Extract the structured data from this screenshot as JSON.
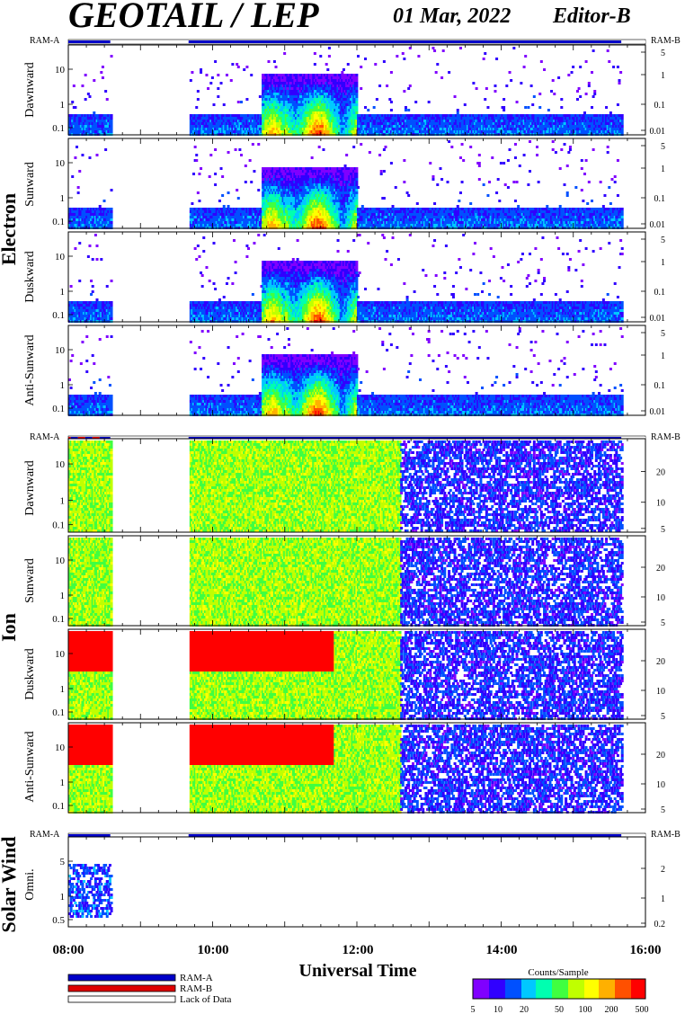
{
  "header": {
    "title": "GEOTAIL / LEP",
    "date": "01 Mar, 2022",
    "editor": "Editor-B"
  },
  "labels": {
    "ram_a": "RAM-A",
    "ram_b": "RAM-B",
    "x_axis_title": "Universal Time",
    "colorbar_title": "Counts/Sample"
  },
  "legend": [
    {
      "label": "RAM-A",
      "color": "#0000c8"
    },
    {
      "label": "RAM-B",
      "color": "#e00000"
    },
    {
      "label": "Lack of Data",
      "color": "#ffffff"
    }
  ],
  "colors": {
    "ram_a": "#0000c8",
    "ram_b": "#e00000",
    "lack": "#ffffff"
  },
  "colorbar": {
    "ticks": [
      "5",
      "10",
      "20",
      "50",
      "100",
      "200",
      "500"
    ],
    "tick_values": [
      5,
      10,
      20,
      50,
      100,
      200,
      500
    ],
    "range": [
      5,
      500
    ],
    "colors": [
      "#8000ff",
      "#3000ff",
      "#0050ff",
      "#00c8ff",
      "#00ffb0",
      "#40ff40",
      "#c0ff00",
      "#ffff00",
      "#ffb000",
      "#ff5000",
      "#ff0000"
    ]
  },
  "chart_data": [
    {
      "type": "heatmap",
      "group": "Electron",
      "time_range": [
        "08:00",
        "16:00"
      ],
      "x_ticks": [
        "08:00",
        "10:00",
        "12:00",
        "14:00",
        "16:00"
      ],
      "data_gaps": [
        [
          "08:35",
          "09:40"
        ],
        [
          "15:40",
          "16:00"
        ]
      ],
      "ram_bar": [
        {
          "from": "08:00",
          "to": "08:35",
          "state": "RAM-A"
        },
        {
          "from": "08:35",
          "to": "09:40",
          "state": "Lack of Data"
        },
        {
          "from": "09:40",
          "to": "15:40",
          "state": "RAM-A"
        },
        {
          "from": "15:40",
          "to": "16:00",
          "state": "Lack of Data"
        }
      ],
      "panels": [
        {
          "name": "Dawnward",
          "left_ticks": [
            "10",
            "1",
            "0.1"
          ],
          "right_ticks": [
            "5",
            "1",
            "0.1",
            "0.01"
          ]
        },
        {
          "name": "Sunward",
          "left_ticks": [
            "10",
            "1",
            "0.1"
          ],
          "right_ticks": [
            "5",
            "1",
            "0.1",
            "0.01"
          ]
        },
        {
          "name": "Duskward",
          "left_ticks": [
            "10",
            "1",
            "0.1"
          ],
          "right_ticks": [
            "5",
            "1",
            "0.1",
            "0.01"
          ]
        },
        {
          "name": "Anti-Sunward",
          "left_ticks": [
            "10",
            "1",
            "0.1"
          ],
          "right_ticks": [
            "5",
            "1",
            "0.1",
            "0.01"
          ]
        }
      ]
    },
    {
      "type": "heatmap",
      "group": "Ion",
      "time_range": [
        "08:00",
        "16:00"
      ],
      "x_ticks": [
        "08:00",
        "10:00",
        "12:00",
        "14:00",
        "16:00"
      ],
      "data_gaps": [
        [
          "08:35",
          "09:40"
        ],
        [
          "15:40",
          "16:00"
        ]
      ],
      "ram_bar": [
        {
          "from": "08:00",
          "to": "08:02",
          "state": "RAM-B"
        },
        {
          "from": "08:02",
          "to": "08:08",
          "state": "RAM-A"
        },
        {
          "from": "08:08",
          "to": "08:14",
          "state": "RAM-B"
        },
        {
          "from": "08:14",
          "to": "08:20",
          "state": "RAM-A"
        },
        {
          "from": "08:20",
          "to": "08:26",
          "state": "RAM-B"
        },
        {
          "from": "08:26",
          "to": "08:35",
          "state": "RAM-A"
        },
        {
          "from": "08:35",
          "to": "09:40",
          "state": "Lack of Data"
        },
        {
          "from": "09:40",
          "to": "15:40",
          "state": "RAM-A"
        },
        {
          "from": "15:40",
          "to": "16:00",
          "state": "Lack of Data"
        }
      ],
      "panels": [
        {
          "name": "Dawnward",
          "left_ticks": [
            "10",
            "1",
            "0.1"
          ],
          "right_ticks": [
            "20",
            "10",
            "5"
          ]
        },
        {
          "name": "Sunward",
          "left_ticks": [
            "10",
            "1",
            "0.1"
          ],
          "right_ticks": [
            "20",
            "10",
            "5"
          ]
        },
        {
          "name": "Duskward",
          "left_ticks": [
            "10",
            "1",
            "0.1"
          ],
          "right_ticks": [
            "20",
            "10",
            "5"
          ]
        },
        {
          "name": "Anti-Sunward",
          "left_ticks": [
            "10",
            "1",
            "0.1"
          ],
          "right_ticks": [
            "20",
            "10",
            "5"
          ]
        }
      ]
    },
    {
      "type": "heatmap",
      "group": "Solar Wind",
      "time_range": [
        "08:00",
        "16:00"
      ],
      "x_ticks": [
        "08:00",
        "10:00",
        "12:00",
        "14:00",
        "16:00"
      ],
      "ram_bar": [
        {
          "from": "08:00",
          "to": "08:35",
          "state": "RAM-A"
        },
        {
          "from": "08:35",
          "to": "09:40",
          "state": "Lack of Data"
        },
        {
          "from": "09:40",
          "to": "15:40",
          "state": "RAM-A"
        },
        {
          "from": "15:40",
          "to": "16:00",
          "state": "Lack of Data"
        }
      ],
      "panels": [
        {
          "name": "Omni.",
          "left_ticks": [
            "5",
            "1",
            "0.5"
          ],
          "right_ticks": [
            "2",
            "1",
            "0.2"
          ]
        }
      ]
    }
  ]
}
